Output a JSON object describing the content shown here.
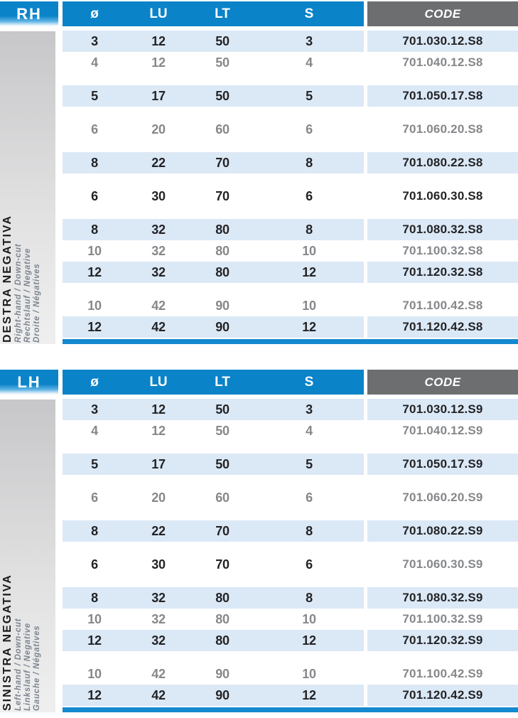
{
  "colors": {
    "header_blue": "#0a83c8",
    "code_gray": "#6d6e70",
    "row_blue": "#dbe8f6",
    "text_black": "#232325",
    "text_gray": "#85878a",
    "bar_blue": "#1589cf"
  },
  "columns": [
    "ø",
    "LU",
    "LT",
    "S"
  ],
  "code_header": "CODE",
  "tables": [
    {
      "badge": "RH",
      "side_title": "DESTRA NEGATIVA",
      "side_subs": [
        "Right-hand / Down-cut",
        "Rechtslauf / Negative",
        "Droite / Négatives"
      ],
      "groups": [
        {
          "rows": [
            {
              "d": "3",
              "lu": "12",
              "lt": "50",
              "s": "3",
              "code": "701.030.12.S8",
              "shade": "blue",
              "num_tone": "black",
              "code_tone": "black"
            },
            {
              "d": "4",
              "lu": "12",
              "lt": "50",
              "s": "4",
              "code": "701.040.12.S8",
              "shade": "white",
              "num_tone": "gray",
              "code_tone": "gray"
            }
          ]
        },
        {
          "rows": [
            {
              "d": "5",
              "lu": "17",
              "lt": "50",
              "s": "5",
              "code": "701.050.17.S8",
              "shade": "blue",
              "num_tone": "black",
              "code_tone": "black"
            }
          ]
        },
        {
          "rows": [
            {
              "d": "6",
              "lu": "20",
              "lt": "60",
              "s": "6",
              "code": "701.060.20.S8",
              "shade": "white",
              "num_tone": "gray",
              "code_tone": "gray"
            }
          ]
        },
        {
          "rows": [
            {
              "d": "8",
              "lu": "22",
              "lt": "70",
              "s": "8",
              "code": "701.080.22.S8",
              "shade": "blue",
              "num_tone": "black",
              "code_tone": "black"
            }
          ]
        },
        {
          "rows": [
            {
              "d": "6",
              "lu": "30",
              "lt": "70",
              "s": "6",
              "code": "701.060.30.S8",
              "shade": "white",
              "num_tone": "black",
              "code_tone": "black"
            }
          ]
        },
        {
          "rows": [
            {
              "d": "8",
              "lu": "32",
              "lt": "80",
              "s": "8",
              "code": "701.080.32.S8",
              "shade": "blue",
              "num_tone": "black",
              "code_tone": "black"
            },
            {
              "d": "10",
              "lu": "32",
              "lt": "80",
              "s": "10",
              "code": "701.100.32.S8",
              "shade": "white",
              "num_tone": "gray",
              "code_tone": "gray"
            },
            {
              "d": "12",
              "lu": "32",
              "lt": "80",
              "s": "12",
              "code": "701.120.32.S8",
              "shade": "blue",
              "num_tone": "black",
              "code_tone": "black"
            }
          ]
        },
        {
          "rows": [
            {
              "d": "10",
              "lu": "42",
              "lt": "90",
              "s": "10",
              "code": "701.100.42.S8",
              "shade": "white",
              "num_tone": "gray",
              "code_tone": "gray"
            },
            {
              "d": "12",
              "lu": "42",
              "lt": "90",
              "s": "12",
              "code": "701.120.42.S8",
              "shade": "blue",
              "num_tone": "black",
              "code_tone": "black"
            }
          ]
        }
      ]
    },
    {
      "badge": "LH",
      "side_title": "SINISTRA NEGATIVA",
      "side_subs": [
        "Left-hand / Down-cut",
        "Linkslauf / Negative",
        "Gauche / Négatives"
      ],
      "groups": [
        {
          "rows": [
            {
              "d": "3",
              "lu": "12",
              "lt": "50",
              "s": "3",
              "code": "701.030.12.S9",
              "shade": "blue",
              "num_tone": "black",
              "code_tone": "black"
            },
            {
              "d": "4",
              "lu": "12",
              "lt": "50",
              "s": "4",
              "code": "701.040.12.S9",
              "shade": "white",
              "num_tone": "gray",
              "code_tone": "gray"
            }
          ]
        },
        {
          "rows": [
            {
              "d": "5",
              "lu": "17",
              "lt": "50",
              "s": "5",
              "code": "701.050.17.S9",
              "shade": "blue",
              "num_tone": "black",
              "code_tone": "black"
            }
          ]
        },
        {
          "rows": [
            {
              "d": "6",
              "lu": "20",
              "lt": "60",
              "s": "6",
              "code": "701.060.20.S9",
              "shade": "white",
              "num_tone": "gray",
              "code_tone": "gray"
            }
          ]
        },
        {
          "rows": [
            {
              "d": "8",
              "lu": "22",
              "lt": "70",
              "s": "8",
              "code": "701.080.22.S9",
              "shade": "blue",
              "num_tone": "black",
              "code_tone": "black"
            }
          ]
        },
        {
          "rows": [
            {
              "d": "6",
              "lu": "30",
              "lt": "70",
              "s": "6",
              "code": "701.060.30.S9",
              "shade": "white",
              "num_tone": "black",
              "code_tone": "gray"
            }
          ]
        },
        {
          "rows": [
            {
              "d": "8",
              "lu": "32",
              "lt": "80",
              "s": "8",
              "code": "701.080.32.S9",
              "shade": "blue",
              "num_tone": "black",
              "code_tone": "black"
            },
            {
              "d": "10",
              "lu": "32",
              "lt": "80",
              "s": "10",
              "code": "701.100.32.S9",
              "shade": "white",
              "num_tone": "gray",
              "code_tone": "gray"
            },
            {
              "d": "12",
              "lu": "32",
              "lt": "80",
              "s": "12",
              "code": "701.120.32.S9",
              "shade": "blue",
              "num_tone": "black",
              "code_tone": "black"
            }
          ]
        },
        {
          "rows": [
            {
              "d": "10",
              "lu": "42",
              "lt": "90",
              "s": "10",
              "code": "701.100.42.S9",
              "shade": "white",
              "num_tone": "gray",
              "code_tone": "gray"
            },
            {
              "d": "12",
              "lu": "42",
              "lt": "90",
              "s": "12",
              "code": "701.120.42.S9",
              "shade": "blue",
              "num_tone": "black",
              "code_tone": "black"
            }
          ]
        }
      ]
    }
  ]
}
